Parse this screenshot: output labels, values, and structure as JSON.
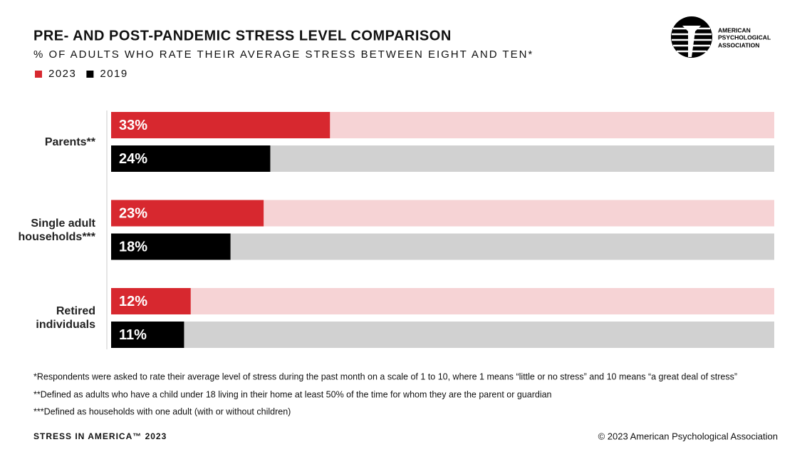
{
  "chart_data": {
    "type": "bar",
    "orientation": "horizontal",
    "title": "PRE- AND POST-PANDEMIC STRESS LEVEL COMPARISON",
    "subtitle": "% OF ADULTS WHO RATE THEIR AVERAGE STRESS BETWEEN EIGHT AND TEN*",
    "categories": [
      "Parents**",
      "Single adult households***",
      "Retired individuals"
    ],
    "series": [
      {
        "name": "2023",
        "color": "#d7282f",
        "track_color": "#f6d3d5",
        "values": [
          33,
          23,
          12
        ],
        "value_labels": [
          "33%",
          "23%",
          "12%"
        ]
      },
      {
        "name": "2019",
        "color": "#000000",
        "track_color": "#d1d1d1",
        "values": [
          24,
          18,
          11
        ],
        "value_labels": [
          "24%",
          "18%",
          "11%"
        ]
      }
    ],
    "xlim": [
      0,
      100
    ],
    "legend": "top-left",
    "footnotes": [
      "*Respondents were asked to rate their average level of stress during the past month on a scale of 1 to 10, where 1 means “little or no stress” and 10 means “a great deal of stress”",
      "**Defined as adults who have a child under 18 living in their home at least 50% of the time for whom they are the parent or guardian",
      "***Defined as households with one adult (with or without children)"
    ]
  },
  "footer": {
    "left": "STRESS IN AMERICA™ 2023",
    "right": "© 2023 American Psychological Association"
  },
  "logo": {
    "lines": [
      "AMERICAN",
      "PSYCHOLOGICAL",
      "ASSOCIATION"
    ]
  }
}
